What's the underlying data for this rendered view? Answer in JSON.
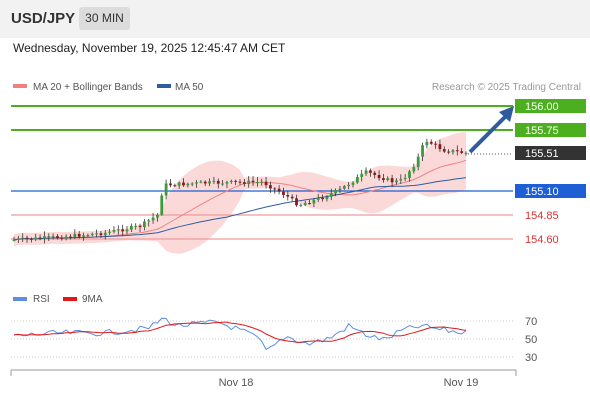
{
  "header": {
    "symbol": "USD/JPY",
    "timeframe": "30 MIN"
  },
  "datetime": "Wednesday, November 19, 2025 12:45:47 AM CET",
  "legend": {
    "items": [
      {
        "label": "MA 20 + Bollinger Bands",
        "color": "#f08080"
      },
      {
        "label": "MA 50",
        "color": "#2e5c9e"
      }
    ],
    "credit": "Research © 2025 Trading Central"
  },
  "levels": [
    {
      "value": 156.0,
      "label": "156.00",
      "kind": "resistance",
      "color": "#4caf1f"
    },
    {
      "value": 155.75,
      "label": "155.75",
      "kind": "resistance",
      "color": "#4caf1f"
    },
    {
      "value": 155.51,
      "label": "155.51",
      "kind": "last-price",
      "color": "#333333"
    },
    {
      "value": 155.1,
      "label": "155.10",
      "kind": "pivot",
      "color": "#1f5fd6"
    },
    {
      "value": 154.85,
      "label": "154.85",
      "kind": "support",
      "color": "#e05050"
    },
    {
      "value": 154.6,
      "label": "154.60",
      "kind": "support",
      "color": "#e05050"
    }
  ],
  "rsi": {
    "legend": [
      {
        "label": "RSI",
        "color": "#5b8ee0"
      },
      {
        "label": "9MA",
        "color": "#e01818"
      }
    ],
    "ticks": [
      "70",
      "50",
      "30"
    ]
  },
  "xaxis": {
    "labels": [
      "Nov 18",
      "Nov 19"
    ]
  },
  "chart_data": {
    "type": "candlestick",
    "y_axis_visible_labels": [
      "156.00",
      "155.75",
      "155.51",
      "155.10",
      "154.85",
      "154.60"
    ],
    "last_price": 155.51,
    "forecast_target": 156.0
  }
}
